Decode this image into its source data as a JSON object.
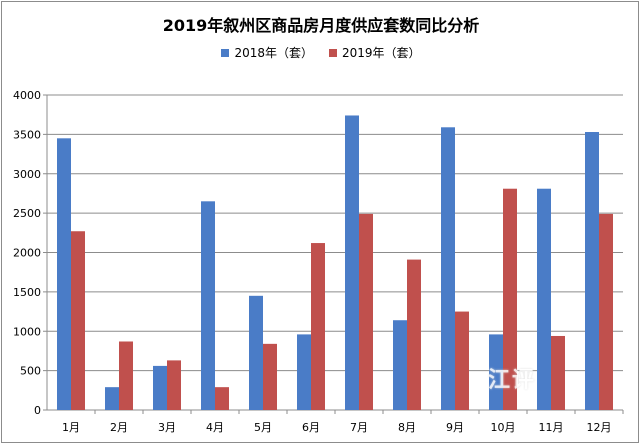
{
  "chart_data": {
    "type": "bar",
    "title": "2019年叙州区商品房月度供应套数同比分析",
    "categories": [
      "1月",
      "2月",
      "3月",
      "4月",
      "5月",
      "6月",
      "7月",
      "8月",
      "9月",
      "10月",
      "11月",
      "12月"
    ],
    "series": [
      {
        "name": "2018年（套）",
        "color": "#4a7cc7",
        "values": [
          3450,
          290,
          560,
          2650,
          1450,
          960,
          3740,
          1140,
          3590,
          960,
          2810,
          3530
        ]
      },
      {
        "name": "2019年（套）",
        "color": "#c0504d",
        "values": [
          2270,
          870,
          630,
          290,
          840,
          2120,
          2490,
          1910,
          1250,
          2810,
          940,
          2490
        ]
      }
    ],
    "ylim": [
      0,
      4000
    ],
    "yticks": [
      0,
      500,
      1000,
      1500,
      2000,
      2500,
      3000,
      3500,
      4000
    ],
    "xlabel": "",
    "ylabel": "",
    "grid": true,
    "legend": "top-center"
  },
  "watermark": "江评"
}
